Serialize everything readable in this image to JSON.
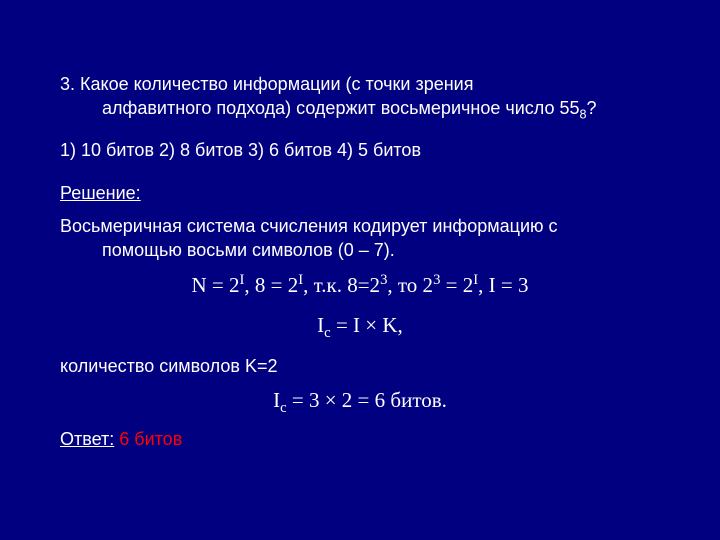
{
  "background_color": "#000080",
  "text_color": "#ffffff",
  "answer_color": "#ff0000",
  "font_family_body": "Arial, sans-serif",
  "font_family_formula": "Times New Roman",
  "fontsize_body": 18,
  "fontsize_formula": 21,
  "question": {
    "line1": "3. Какое количество информации (с точки зрения",
    "line2_prefix": "алфавитного подхода) содержит восьмеричное число 55",
    "line2_sub": "8",
    "line2_suffix": "?"
  },
  "options": "1) 10 битов 2) 8 битов   3) 6 битов   4) 5 битов",
  "solution_label": "Решение:",
  "paragraph": {
    "line1": "Восьмеричная система счисления кодирует информацию с",
    "line2": "помощью восьми символов (0 – 7)."
  },
  "formula1": {
    "p1": "N = 2",
    "s1": "I",
    "p2": ", 8 = 2",
    "s2": "I",
    "p3": ", т.к. 8=2",
    "s3": "3",
    "p4": ", то 2",
    "s4": "3",
    "p5": " = 2",
    "s5": "I",
    "p6": ", I = 3"
  },
  "formula2": {
    "p1": "I",
    "sub1": "c",
    "p2": " = I × K,"
  },
  "paragraph2": "количество символов K=2",
  "formula3": {
    "p1": "I",
    "sub1": "c",
    "p2": " = 3 × 2 = 6 битов."
  },
  "answer": {
    "label": "Ответ:",
    "value": " 6 битов"
  }
}
